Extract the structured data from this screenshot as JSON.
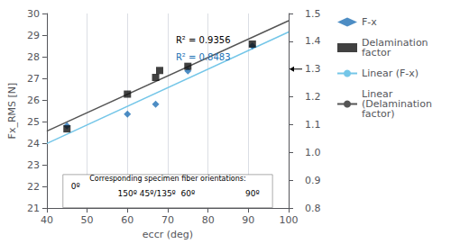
{
  "chart_data": {
    "type": "scatter",
    "xlabel": "eccr (deg)",
    "ylabel": "Fx_RMS [N]",
    "xlim": [
      40,
      100
    ],
    "xticks": [
      40,
      50,
      60,
      70,
      80,
      90,
      100
    ],
    "ylim": [
      21,
      30
    ],
    "yticks": [
      21,
      22,
      23,
      24,
      25,
      26,
      27,
      28,
      29,
      30
    ],
    "y2lim": [
      0.8,
      1.5
    ],
    "y2ticks": [
      0.8,
      0.9,
      {
        "value": 1.0,
        "label": "1.0"
      },
      1.1,
      1.2,
      1.3,
      1.4,
      1.5
    ],
    "grid": "x",
    "legend": "right",
    "series": [
      {
        "name": "F-x",
        "type": "scatter",
        "marker": "diamond",
        "color": "#2171b5",
        "x": [
          45,
          60,
          67,
          75,
          91
        ],
        "values": [
          24.8,
          25.35,
          25.8,
          27.35,
          28.5
        ]
      },
      {
        "name": "Delamination\nfactor",
        "type": "scatter",
        "marker": "square",
        "color": "#111111",
        "axis": "y2",
        "x": [
          45,
          60,
          67,
          68,
          75,
          91
        ],
        "values": [
          1.085,
          1.21,
          1.27,
          1.295,
          1.31,
          1.39
        ]
      },
      {
        "name": "Linear (F-x)",
        "type": "line",
        "color": "#74c6e8",
        "x": [
          40,
          100
        ],
        "values": [
          23.987652,
          29.144929
        ]
      },
      {
        "name": "Linear\n(Delamination\nfactor)",
        "type": "line",
        "color": "#555555",
        "axis": "y2",
        "x": [
          40,
          100
        ],
        "values": [
          1.0768285,
          1.4740679
        ]
      }
    ],
    "annotations": [
      {
        "text": "R² = 0.9356",
        "color": "#000000"
      },
      {
        "text": "R² = 0.8483",
        "color": "#2171b5"
      },
      {
        "text": "0º"
      },
      {
        "text": "Corresponding specimen fiber orientations:"
      },
      {
        "text": "150º"
      },
      {
        "text": "45º/135º"
      },
      {
        "text": "60º"
      },
      {
        "text": "90º"
      }
    ]
  }
}
